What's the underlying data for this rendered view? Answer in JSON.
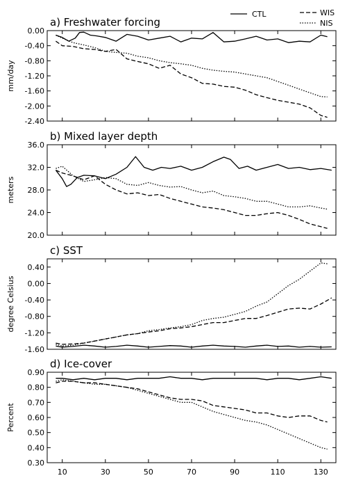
{
  "legend": [
    {
      "name": "CTL",
      "style": "solid"
    },
    {
      "name": "WIS",
      "style": "dashed"
    },
    {
      "name": "NIS",
      "style": "dotted"
    }
  ],
  "chart_data": [
    {
      "type": "line",
      "title": "a) Freshwater forcing",
      "ylabel": "mm/day",
      "xlim": [
        3,
        137
      ],
      "ylim": [
        -2.4,
        0.0
      ],
      "yticks": [
        -2.4,
        -2.0,
        -1.6,
        -1.2,
        -0.8,
        -0.4,
        0.0
      ],
      "ytick_labels": [
        "-2.40",
        "-2.00",
        "-1.60",
        "-1.20",
        "-0.80",
        "-0.40",
        "0.00"
      ],
      "series": [
        {
          "name": "CTL",
          "style": "solid",
          "x": [
            7,
            10,
            13,
            16,
            18,
            20,
            23,
            26,
            30,
            35,
            40,
            45,
            50,
            55,
            60,
            65,
            70,
            75,
            80,
            85,
            90,
            95,
            100,
            105,
            110,
            115,
            120,
            125,
            130,
            133
          ],
          "y": [
            -0.12,
            -0.18,
            -0.28,
            -0.2,
            -0.05,
            -0.04,
            -0.12,
            -0.14,
            -0.18,
            -0.28,
            -0.1,
            -0.15,
            -0.25,
            -0.2,
            -0.15,
            -0.3,
            -0.2,
            -0.22,
            -0.05,
            -0.3,
            -0.28,
            -0.22,
            -0.15,
            -0.25,
            -0.22,
            -0.32,
            -0.28,
            -0.3,
            -0.12,
            -0.16
          ]
        },
        {
          "name": "WIS",
          "style": "dashed",
          "x": [
            7,
            10,
            15,
            20,
            25,
            30,
            35,
            40,
            45,
            50,
            55,
            60,
            65,
            70,
            75,
            80,
            85,
            90,
            95,
            100,
            105,
            110,
            115,
            120,
            125,
            130,
            133
          ],
          "y": [
            -0.28,
            -0.4,
            -0.42,
            -0.48,
            -0.5,
            -0.55,
            -0.5,
            -0.75,
            -0.82,
            -0.88,
            -1.0,
            -0.92,
            -1.15,
            -1.25,
            -1.4,
            -1.42,
            -1.48,
            -1.5,
            -1.58,
            -1.7,
            -1.78,
            -1.85,
            -1.9,
            -1.95,
            -2.05,
            -2.25,
            -2.3
          ]
        },
        {
          "name": "NIS",
          "style": "dotted",
          "x": [
            7,
            10,
            15,
            20,
            25,
            30,
            35,
            40,
            45,
            50,
            55,
            60,
            65,
            70,
            75,
            80,
            85,
            90,
            95,
            100,
            105,
            110,
            115,
            120,
            125,
            130,
            133
          ],
          "y": [
            -0.12,
            -0.2,
            -0.32,
            -0.38,
            -0.45,
            -0.55,
            -0.58,
            -0.6,
            -0.68,
            -0.72,
            -0.8,
            -0.85,
            -0.88,
            -0.92,
            -1.0,
            -1.05,
            -1.08,
            -1.1,
            -1.15,
            -1.2,
            -1.25,
            -1.35,
            -1.45,
            -1.55,
            -1.65,
            -1.75,
            -1.76
          ]
        }
      ]
    },
    {
      "type": "line",
      "title": "b) Mixed layer depth",
      "ylabel": "meters",
      "xlim": [
        3,
        137
      ],
      "ylim": [
        20.0,
        36.0
      ],
      "yticks": [
        20,
        24,
        28,
        32,
        36
      ],
      "ytick_labels": [
        "20.0",
        "24.0",
        "28.0",
        "32.0",
        "36.0"
      ],
      "series": [
        {
          "name": "CTL",
          "style": "solid",
          "x": [
            7,
            10,
            12,
            14,
            17,
            20,
            25,
            30,
            35,
            40,
            44,
            48,
            52,
            56,
            60,
            65,
            70,
            75,
            80,
            85,
            88,
            92,
            96,
            100,
            105,
            110,
            115,
            120,
            125,
            130,
            135
          ],
          "y": [
            31.5,
            30.0,
            28.6,
            29.0,
            30.2,
            30.6,
            30.5,
            30.0,
            30.8,
            32.0,
            33.9,
            32.0,
            31.5,
            32.0,
            31.8,
            32.2,
            31.5,
            32.0,
            33.0,
            33.8,
            33.4,
            31.8,
            32.2,
            31.5,
            32.0,
            32.5,
            31.8,
            32.0,
            31.6,
            31.8,
            31.5
          ]
        },
        {
          "name": "WIS",
          "style": "dashed",
          "x": [
            7,
            10,
            15,
            20,
            25,
            30,
            35,
            40,
            45,
            50,
            55,
            60,
            65,
            70,
            75,
            80,
            85,
            90,
            95,
            100,
            105,
            110,
            115,
            120,
            125,
            130,
            133
          ],
          "y": [
            31.5,
            31.0,
            30.5,
            29.8,
            30.5,
            29.0,
            28.0,
            27.3,
            27.5,
            27.0,
            27.2,
            26.5,
            26.0,
            25.5,
            25.0,
            24.8,
            24.5,
            24.0,
            23.5,
            23.5,
            23.8,
            24.0,
            23.5,
            22.8,
            22.0,
            21.5,
            21.2
          ]
        },
        {
          "name": "NIS",
          "style": "dotted",
          "x": [
            7,
            10,
            15,
            20,
            25,
            30,
            35,
            40,
            45,
            50,
            55,
            60,
            65,
            70,
            75,
            80,
            85,
            90,
            95,
            100,
            105,
            110,
            115,
            120,
            125,
            130,
            133
          ],
          "y": [
            31.8,
            32.2,
            30.5,
            29.5,
            29.8,
            30.2,
            30.0,
            29.0,
            28.8,
            29.3,
            28.8,
            28.5,
            28.6,
            28.0,
            27.5,
            27.8,
            27.0,
            26.8,
            26.5,
            26.0,
            26.0,
            25.5,
            25.0,
            25.0,
            25.2,
            24.8,
            24.6
          ]
        }
      ]
    },
    {
      "type": "line",
      "title": "c) SST",
      "ylabel": "degree Celsius",
      "xlim": [
        3,
        137
      ],
      "ylim": [
        -1.6,
        0.6
      ],
      "yticks": [
        -1.6,
        -1.2,
        -0.8,
        -0.4,
        0.0,
        0.4
      ],
      "ytick_labels": [
        "-1.60",
        "-1.20",
        "-0.80",
        "-0.40",
        "0.00",
        "0.40"
      ],
      "series": [
        {
          "name": "CTL",
          "style": "solid",
          "x": [
            7,
            10,
            15,
            20,
            25,
            30,
            35,
            40,
            45,
            50,
            55,
            60,
            65,
            70,
            75,
            80,
            85,
            90,
            95,
            100,
            105,
            110,
            115,
            120,
            125,
            130,
            135
          ],
          "y": [
            -1.52,
            -1.55,
            -1.53,
            -1.5,
            -1.52,
            -1.55,
            -1.53,
            -1.5,
            -1.52,
            -1.55,
            -1.53,
            -1.51,
            -1.52,
            -1.55,
            -1.52,
            -1.5,
            -1.52,
            -1.53,
            -1.55,
            -1.52,
            -1.5,
            -1.53,
            -1.52,
            -1.55,
            -1.53,
            -1.55,
            -1.54
          ]
        },
        {
          "name": "WIS",
          "style": "dashed",
          "x": [
            7,
            10,
            15,
            20,
            25,
            30,
            35,
            40,
            45,
            50,
            55,
            60,
            65,
            70,
            75,
            80,
            85,
            90,
            95,
            100,
            105,
            110,
            115,
            120,
            125,
            130,
            135
          ],
          "y": [
            -1.45,
            -1.48,
            -1.47,
            -1.45,
            -1.4,
            -1.35,
            -1.3,
            -1.25,
            -1.22,
            -1.18,
            -1.15,
            -1.1,
            -1.08,
            -1.05,
            -1.0,
            -0.95,
            -0.95,
            -0.9,
            -0.85,
            -0.85,
            -0.78,
            -0.7,
            -0.62,
            -0.6,
            -0.62,
            -0.5,
            -0.35
          ]
        },
        {
          "name": "NIS",
          "style": "dotted",
          "x": [
            7,
            10,
            15,
            20,
            25,
            30,
            35,
            40,
            45,
            50,
            55,
            60,
            65,
            70,
            75,
            80,
            85,
            90,
            95,
            100,
            105,
            110,
            115,
            120,
            125,
            130,
            133
          ],
          "y": [
            -1.48,
            -1.52,
            -1.5,
            -1.45,
            -1.4,
            -1.35,
            -1.3,
            -1.25,
            -1.22,
            -1.15,
            -1.12,
            -1.08,
            -1.05,
            -1.0,
            -0.9,
            -0.85,
            -0.82,
            -0.75,
            -0.68,
            -0.55,
            -0.45,
            -0.25,
            -0.05,
            0.1,
            0.3,
            0.5,
            0.48
          ]
        }
      ]
    },
    {
      "type": "line",
      "title": "d) Ice-cover",
      "ylabel": "Percent",
      "xlim": [
        3,
        137
      ],
      "ylim": [
        0.3,
        0.9
      ],
      "yticks": [
        0.3,
        0.4,
        0.5,
        0.6,
        0.7,
        0.8,
        0.9
      ],
      "ytick_labels": [
        "0.30",
        "0.40",
        "0.50",
        "0.60",
        "0.70",
        "0.80",
        "0.90"
      ],
      "xticks": [
        10,
        30,
        50,
        70,
        90,
        110,
        130
      ],
      "xtick_labels": [
        "10",
        "30",
        "50",
        "70",
        "90",
        "110",
        "130"
      ],
      "series": [
        {
          "name": "CTL",
          "style": "solid",
          "x": [
            7,
            10,
            15,
            20,
            25,
            30,
            35,
            40,
            45,
            50,
            55,
            60,
            65,
            70,
            75,
            80,
            85,
            90,
            95,
            100,
            105,
            110,
            115,
            120,
            125,
            130,
            135
          ],
          "y": [
            0.86,
            0.86,
            0.85,
            0.86,
            0.85,
            0.86,
            0.86,
            0.85,
            0.86,
            0.86,
            0.86,
            0.87,
            0.86,
            0.86,
            0.85,
            0.86,
            0.86,
            0.86,
            0.86,
            0.86,
            0.85,
            0.86,
            0.86,
            0.85,
            0.86,
            0.87,
            0.86
          ]
        },
        {
          "name": "WIS",
          "style": "dashed",
          "x": [
            7,
            10,
            15,
            20,
            25,
            30,
            35,
            40,
            45,
            50,
            55,
            60,
            65,
            70,
            75,
            80,
            85,
            90,
            95,
            100,
            105,
            110,
            115,
            120,
            125,
            130,
            133
          ],
          "y": [
            0.83,
            0.84,
            0.84,
            0.83,
            0.83,
            0.82,
            0.81,
            0.8,
            0.79,
            0.77,
            0.75,
            0.73,
            0.72,
            0.72,
            0.71,
            0.68,
            0.67,
            0.66,
            0.65,
            0.63,
            0.63,
            0.61,
            0.6,
            0.61,
            0.61,
            0.58,
            0.57
          ]
        },
        {
          "name": "NIS",
          "style": "dotted",
          "x": [
            7,
            10,
            15,
            20,
            25,
            30,
            35,
            40,
            45,
            50,
            55,
            60,
            65,
            70,
            75,
            80,
            85,
            90,
            95,
            100,
            105,
            110,
            115,
            120,
            125,
            130,
            133
          ],
          "y": [
            0.84,
            0.85,
            0.84,
            0.83,
            0.82,
            0.82,
            0.81,
            0.8,
            0.78,
            0.76,
            0.74,
            0.72,
            0.7,
            0.7,
            0.67,
            0.64,
            0.62,
            0.6,
            0.58,
            0.57,
            0.55,
            0.52,
            0.49,
            0.46,
            0.43,
            0.4,
            0.39
          ]
        }
      ]
    }
  ]
}
